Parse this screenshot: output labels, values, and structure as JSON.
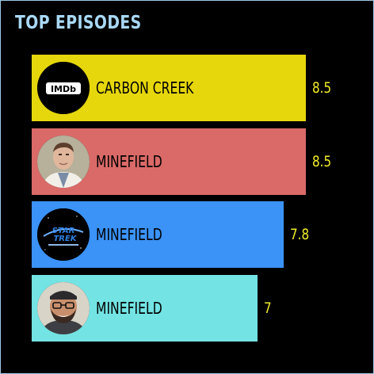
{
  "title": "TOP EPISODES",
  "chart_data": {
    "type": "bar",
    "orientation": "horizontal",
    "title": "TOP EPISODES",
    "xlim": [
      0,
      8.5
    ],
    "categories": [
      "CARBON CREEK",
      "MINEFIELD",
      "MINEFIELD",
      "MINEFIELD"
    ],
    "values": [
      8.5,
      8.5,
      7.8,
      7
    ],
    "value_labels": [
      "8.5",
      "8.5",
      "7.8",
      "7"
    ],
    "bar_colors": [
      "#e6d70d",
      "#d96a68",
      "#3b92f7",
      "#73e3e3"
    ],
    "avatars": [
      "imdb-logo-icon",
      "man-in-suit-portrait",
      "star-trek-tng-logo-icon",
      "bearded-man-portrait"
    ]
  }
}
